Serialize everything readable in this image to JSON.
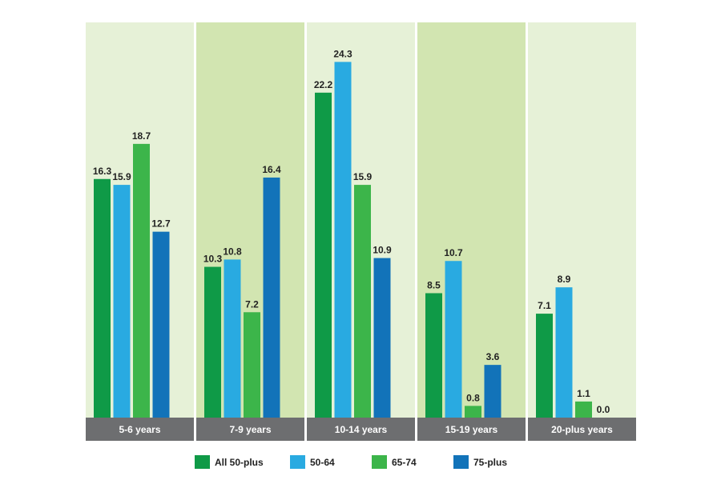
{
  "chart_data": {
    "type": "bar",
    "categories": [
      "5-6 years",
      "7-9 years",
      "10-14 years",
      "15-19 years",
      "20-plus years"
    ],
    "series": [
      {
        "name": "All 50-plus",
        "color": "#0f9a47",
        "values": [
          16.3,
          10.3,
          22.2,
          8.5,
          7.1
        ]
      },
      {
        "name": "50-64",
        "color": "#29aae1",
        "values": [
          15.9,
          10.8,
          24.3,
          10.7,
          8.9
        ]
      },
      {
        "name": "65-74",
        "color": "#3cb54a",
        "values": [
          18.7,
          7.2,
          15.9,
          0.8,
          1.1
        ]
      },
      {
        "name": "75-plus",
        "color": "#1273b9",
        "values": [
          12.7,
          16.4,
          10.9,
          3.6,
          0.0
        ]
      }
    ],
    "panel_colors": [
      "#e6f1d7",
      "#d2e5b1",
      "#e6f1d7",
      "#d2e5b1",
      "#e6f1d7"
    ],
    "category_band_color": "#6d6e70",
    "ylim": [
      0,
      27
    ],
    "legend_position": "bottom",
    "grid": false
  }
}
